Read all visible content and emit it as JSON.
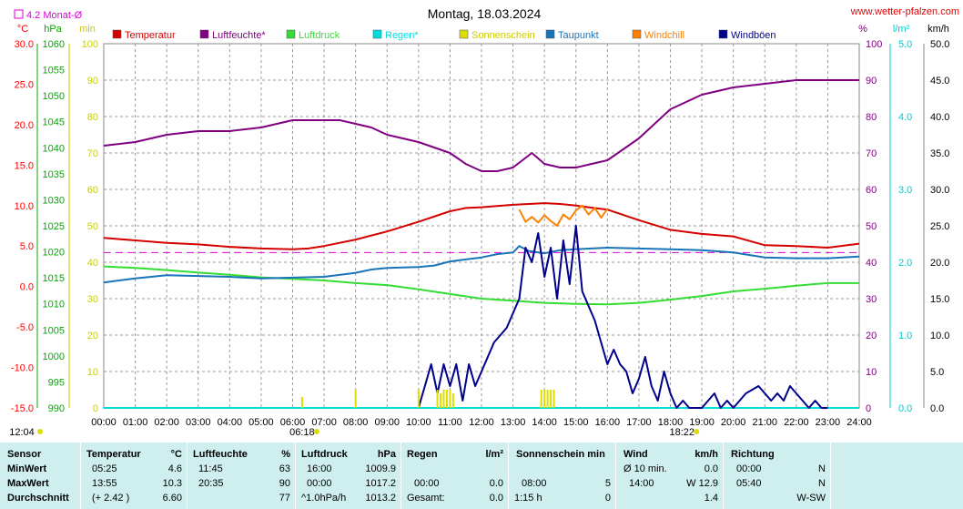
{
  "header": {
    "title": "Montag, 18.03.2024",
    "website": "www.wetter-pfalzen.com",
    "monthly_avg_label": "4.2 Monat-Ø"
  },
  "axes": {
    "temp_unit": "°C",
    "pressure_unit": "hPa",
    "sun_unit": "min",
    "humidity_unit": "%",
    "rain_unit": "l/m²",
    "wind_unit": "km/h",
    "temp_ticks": [
      "30.0",
      "25.0",
      "20.0",
      "15.0",
      "10.0",
      "5.0",
      "0.0",
      "-5.0",
      "-10.0",
      "-15.0"
    ],
    "pressure_ticks": [
      "1060",
      "1055",
      "1050",
      "1045",
      "1040",
      "1035",
      "1030",
      "1025",
      "1020",
      "1015",
      "1010",
      "1005",
      "1000",
      "995",
      "990"
    ],
    "sun_ticks": [
      "100",
      "90",
      "80",
      "70",
      "60",
      "50",
      "40",
      "30",
      "20",
      "10",
      "0"
    ],
    "humidity_ticks": [
      "100",
      "90",
      "80",
      "70",
      "60",
      "50",
      "40",
      "30",
      "20",
      "10",
      "0"
    ],
    "rain_ticks": [
      "5.0",
      "4.0",
      "3.0",
      "2.0",
      "1.0",
      "0.0"
    ],
    "wind_ticks": [
      "50.0",
      "45.0",
      "40.0",
      "35.0",
      "30.0",
      "25.0",
      "20.0",
      "15.0",
      "10.0",
      "5.0",
      "0.0"
    ],
    "time_ticks": [
      "00:00",
      "01:00",
      "02:00",
      "03:00",
      "04:00",
      "05:00",
      "06:00",
      "07:00",
      "08:00",
      "09:00",
      "10:00",
      "11:00",
      "12:00",
      "13:00",
      "14:00",
      "15:00",
      "16:00",
      "17:00",
      "18:00",
      "19:00",
      "20:00",
      "21:00",
      "22:00",
      "23:00",
      "24:00"
    ],
    "sunrise": "06:18",
    "sunset": "18:22",
    "footer_time": "12:04"
  },
  "legend": [
    {
      "label": "Temperatur",
      "color": "#d40000"
    },
    {
      "label": "Luftfeuchte*",
      "color": "#800080"
    },
    {
      "label": "Luftdruck",
      "color": "#33dd33"
    },
    {
      "label": "Regen*",
      "color": "#00dddd"
    },
    {
      "label": "Sonnenschein",
      "color": "#dddd00"
    },
    {
      "label": "Taupunkt",
      "color": "#1874b8"
    },
    {
      "label": "Windchill",
      "color": "#ff8000"
    },
    {
      "label": "Windböen",
      "color": "#00008b"
    }
  ],
  "colors": {
    "temp_axis": "#ff0000",
    "pressure_axis": "#00aa00",
    "sun_axis": "#cccc00",
    "humidity_axis": "#800080",
    "rain_axis": "#00cccc",
    "wind_axis": "#000000",
    "monthly_avg": "#dd00dd",
    "sun_bar": "#dddd00",
    "grid": "#999999"
  },
  "chart_data": {
    "type": "line",
    "title": "Montag, 18.03.2024",
    "x_unit": "hours",
    "xlim": [
      0,
      24
    ],
    "monthly_avg_temp": 4.2,
    "series": [
      {
        "name": "Temperatur",
        "axis": "temp",
        "ylim": [
          -15,
          30
        ],
        "x": [
          0,
          1,
          2,
          3,
          4,
          5,
          6,
          6.5,
          7,
          8,
          9,
          10,
          11,
          11.5,
          12,
          13,
          13.5,
          14,
          14.5,
          15,
          16,
          17,
          18,
          19,
          20,
          21,
          22,
          23,
          24
        ],
        "y": [
          6.0,
          5.7,
          5.4,
          5.2,
          4.9,
          4.7,
          4.6,
          4.7,
          5.0,
          5.8,
          6.8,
          8.0,
          9.3,
          9.7,
          9.8,
          10.1,
          10.2,
          10.3,
          10.2,
          10.0,
          9.5,
          8.2,
          7.0,
          6.5,
          6.2,
          5.1,
          5.0,
          4.8,
          5.3
        ]
      },
      {
        "name": "Luftfeuchte*",
        "axis": "humidity",
        "ylim": [
          0,
          100
        ],
        "x": [
          0,
          1,
          1.5,
          2,
          3,
          4,
          5,
          5.5,
          6,
          7,
          7.5,
          8,
          8.5,
          9,
          10,
          11,
          11.5,
          12,
          12.5,
          13,
          13.3,
          13.6,
          14,
          14.5,
          15,
          15.5,
          16,
          17,
          18,
          18.5,
          19,
          20,
          21,
          22,
          23,
          24
        ],
        "y": [
          72,
          73,
          74,
          75,
          76,
          76,
          77,
          78,
          79,
          79,
          79,
          78,
          77,
          75,
          73,
          70,
          67,
          65,
          65,
          66,
          68,
          70,
          67,
          66,
          66,
          67,
          68,
          74,
          82,
          84,
          86,
          88,
          89,
          90,
          90,
          90
        ]
      },
      {
        "name": "Luftdruck",
        "axis": "pressure",
        "ylim": [
          990,
          1060
        ],
        "x": [
          0,
          1,
          2,
          3,
          4,
          5,
          6,
          7,
          8,
          9,
          10,
          11,
          12,
          13,
          14,
          15,
          16,
          17,
          18,
          19,
          20,
          21,
          22,
          23,
          24
        ],
        "y": [
          1017.2,
          1016.9,
          1016.5,
          1016.0,
          1015.6,
          1015.1,
          1014.8,
          1014.5,
          1014.0,
          1013.6,
          1012.8,
          1011.9,
          1011.0,
          1010.6,
          1010.2,
          1010.0,
          1009.9,
          1010.2,
          1010.8,
          1011.5,
          1012.4,
          1012.9,
          1013.5,
          1014.0,
          1014.0
        ]
      },
      {
        "name": "Regen*",
        "axis": "rain",
        "ylim": [
          0,
          5
        ],
        "x": [
          0,
          24
        ],
        "y": [
          0,
          0
        ]
      },
      {
        "name": "Taupunkt",
        "axis": "temp",
        "ylim": [
          -15,
          30
        ],
        "x": [
          0,
          1,
          2,
          3,
          4,
          5,
          6,
          7,
          8,
          8.5,
          9,
          10,
          10.5,
          11,
          12,
          12.5,
          13,
          13.2,
          13.5,
          14,
          14.5,
          15,
          16,
          17,
          18,
          19,
          20,
          21,
          22,
          23,
          24
        ],
        "y": [
          0.5,
          1.0,
          1.4,
          1.3,
          1.2,
          1.0,
          1.1,
          1.2,
          1.7,
          2.1,
          2.3,
          2.4,
          2.6,
          3.1,
          3.6,
          4.0,
          4.2,
          5.0,
          4.4,
          4.1,
          4.5,
          4.6,
          4.8,
          4.7,
          4.6,
          4.5,
          4.2,
          3.6,
          3.5,
          3.5,
          3.7
        ]
      },
      {
        "name": "Windchill",
        "axis": "temp",
        "ylim": [
          -15,
          30
        ],
        "x": [
          13.2,
          13.4,
          13.6,
          13.8,
          14.0,
          14.2,
          14.4,
          14.6,
          14.8,
          15.0,
          15.2,
          15.4,
          15.6,
          15.8,
          16.0
        ],
        "y": [
          9.5,
          8.0,
          8.6,
          7.9,
          8.8,
          8.1,
          7.5,
          8.9,
          8.3,
          9.4,
          10.0,
          8.9,
          9.7,
          8.5,
          9.6
        ]
      },
      {
        "name": "Windböen",
        "axis": "wind",
        "ylim": [
          0,
          50
        ],
        "x": [
          10.0,
          10.2,
          10.4,
          10.6,
          10.8,
          11.0,
          11.2,
          11.4,
          11.6,
          11.8,
          12.0,
          12.2,
          12.4,
          12.6,
          12.8,
          13.0,
          13.2,
          13.4,
          13.6,
          13.8,
          14.0,
          14.2,
          14.4,
          14.6,
          14.8,
          15.0,
          15.2,
          15.4,
          15.6,
          15.8,
          16.0,
          16.2,
          16.4,
          16.6,
          16.8,
          17.0,
          17.2,
          17.4,
          17.6,
          17.8,
          18.0,
          18.2,
          18.4,
          18.6,
          19.0,
          19.4,
          19.6,
          19.8,
          20.0,
          20.4,
          20.8,
          21.0,
          21.2,
          21.4,
          21.6,
          21.8,
          22.0,
          22.2,
          22.4,
          22.6,
          22.8,
          23.0
        ],
        "y": [
          0,
          3,
          6,
          2,
          6,
          3,
          6,
          1,
          6,
          3,
          5,
          7,
          9,
          10,
          11,
          13,
          15,
          22,
          20,
          24,
          18,
          22,
          15,
          23,
          17,
          25,
          16,
          14,
          12,
          9,
          6,
          8,
          6,
          5,
          2,
          4,
          7,
          3,
          1,
          5,
          2,
          0,
          1,
          0,
          0,
          2,
          0,
          1,
          0,
          2,
          3,
          2,
          1,
          2,
          1,
          3,
          2,
          1,
          0,
          1,
          0,
          0
        ]
      },
      {
        "name": "Sonnenschein",
        "axis": "sun",
        "ylim": [
          0,
          100
        ],
        "type": "bar",
        "x": [
          6.3,
          8.0,
          10.0,
          10.6,
          10.7,
          10.8,
          10.9,
          11.0,
          11.1,
          13.9,
          14.0,
          14.1,
          14.2,
          14.3
        ],
        "y": [
          3,
          5,
          5,
          5,
          4,
          5,
          5,
          5,
          4,
          5,
          5,
          5,
          5,
          5
        ]
      }
    ]
  },
  "table": {
    "labels": {
      "sensor": "Sensor",
      "min": "MinWert",
      "max": "MaxWert",
      "avg": "Durchschnitt"
    },
    "temperature": {
      "head": "Temperatur",
      "unit": "°C",
      "min_time": "05:25",
      "min_val": "4.6",
      "max_time": "13:55",
      "max_val": "10.3",
      "avg_trend": "(+ 2.42 )",
      "avg_val": "6.60"
    },
    "humidity": {
      "head": "Luftfeuchte",
      "unit": "%",
      "min_time": "11:45",
      "min_val": "63",
      "max_time": "20:35",
      "max_val": "90",
      "avg_val": "77"
    },
    "pressure": {
      "head": "Luftdruck",
      "unit": "hPa",
      "min_time": "16:00",
      "min_val": "1009.9",
      "max_time": "00:00",
      "max_val": "1017.2",
      "avg_trend": "^1.0hPa/h",
      "avg_val": "1013.2"
    },
    "rain": {
      "head": "Regen",
      "unit": "l/m²",
      "max_time": "00:00",
      "max_val": "0.0",
      "avg_label": "Gesamt:",
      "avg_val": "0.0"
    },
    "sun": {
      "head": "Sonnenschein min",
      "max_time": "08:00",
      "max_val": "5",
      "avg_label": "1:15 h",
      "avg_val": "0"
    },
    "wind": {
      "head": "Wind",
      "unit": "km/h",
      "min_label": "Ø 10 min.",
      "min_val": "0.0",
      "max_time": "14:00",
      "max_val": "W 12.9",
      "avg_val": "1.4"
    },
    "direction": {
      "head": "Richtung",
      "min_time": "00:00",
      "min_val": "N",
      "max_time": "05:40",
      "max_val": "N",
      "avg_val": "W-SW"
    }
  }
}
